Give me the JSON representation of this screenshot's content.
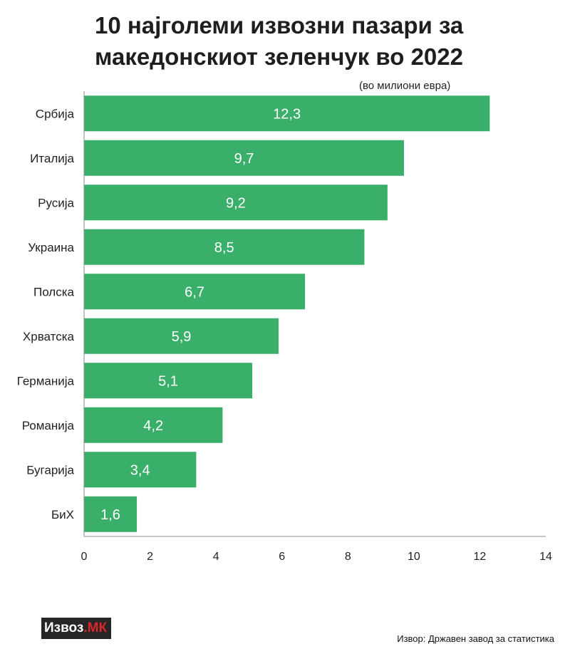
{
  "title": "10 најголеми извозни пазари за македонскиот зеленчук во 2022",
  "unit_note": "(во милиони евра)",
  "logo": {
    "main": "Извоз",
    "accent": ".МК"
  },
  "source": "Извор: Државен завод за статистика",
  "colors": {
    "bar": "#3aaf6a",
    "axis": "#888888"
  },
  "chart_data": {
    "type": "bar",
    "orientation": "horizontal",
    "categories": [
      "Србија",
      "Италија",
      "Русија",
      "Украина",
      "Полска",
      "Хрватска",
      "Германија",
      "Романија",
      "Бугарија",
      "БиХ"
    ],
    "values": [
      12.3,
      9.7,
      9.2,
      8.5,
      6.7,
      5.9,
      5.1,
      4.2,
      3.4,
      1.6
    ],
    "value_labels": [
      "12,3",
      "9,7",
      "9,2",
      "8,5",
      "6,7",
      "5,9",
      "5,1",
      "4,2",
      "3,4",
      "1,6"
    ],
    "xlim": [
      0,
      14
    ],
    "xticks": [
      0,
      2,
      4,
      6,
      8,
      10,
      12,
      14
    ],
    "grid": false
  }
}
